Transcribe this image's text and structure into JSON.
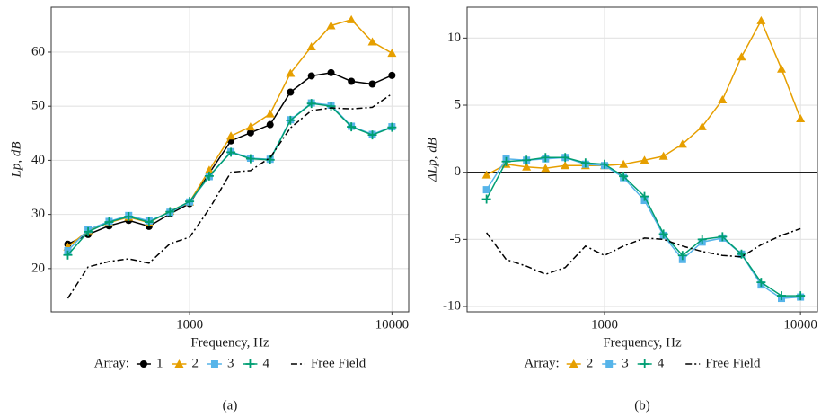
{
  "chart_data": [
    {
      "type": "line",
      "caption": "(a)",
      "x_label": "Frequency, Hz",
      "y_label": "Lp, dB",
      "legend_title": "Array:",
      "legend": "bottom",
      "x": [
        250,
        315,
        400,
        500,
        630,
        800,
        1000,
        1250,
        1600,
        2000,
        2500,
        3150,
        4000,
        5000,
        6300,
        8000,
        10000
      ],
      "xlim": [
        207,
        12100
      ],
      "xticks": [
        1000,
        10000
      ],
      "xscale": "log",
      "ylim": [
        12,
        68.3
      ],
      "yticks": [
        20,
        30,
        40,
        50,
        60
      ],
      "grid": true,
      "series": [
        {
          "name": "1",
          "color": "#000000",
          "marker": "circle",
          "values": [
            24.5,
            26.3,
            27.9,
            28.9,
            27.8,
            30.1,
            32,
            37.6,
            43.6,
            45.1,
            46.6,
            52.6,
            55.6,
            56.2,
            54.6,
            54.1,
            55.7
          ]
        },
        {
          "name": "2",
          "color": "#E69F00",
          "marker": "triangle",
          "values": [
            24,
            27,
            28.5,
            29.5,
            28.5,
            30.6,
            32.3,
            38.2,
            44.5,
            46.2,
            48.6,
            56.1,
            61,
            64.9,
            66,
            61.9,
            59.8
          ]
        },
        {
          "name": "3",
          "color": "#56B4E9",
          "marker": "square",
          "values": [
            23.3,
            27.2,
            28.7,
            29.8,
            28.8,
            30.4,
            32.3,
            37,
            41.6,
            40.4,
            40.2,
            47.5,
            50.6,
            50.2,
            46.3,
            44.8,
            46.2
          ]
        },
        {
          "name": "4",
          "color": "#009E73",
          "marker": "plus",
          "values": [
            22.5,
            26.8,
            28.6,
            29.6,
            28.6,
            30.5,
            32.4,
            37.1,
            41.5,
            40.3,
            40.1,
            47.4,
            50.5,
            50,
            46.2,
            44.7,
            46.1
          ]
        },
        {
          "name": "Free Field",
          "color": "#000000",
          "dash": "dashdot",
          "values": [
            14.5,
            20.3,
            21.3,
            21.8,
            21,
            24.6,
            25.8,
            31,
            37.8,
            38.1,
            40.5,
            46,
            49.2,
            49.7,
            49.5,
            49.8,
            52.3
          ]
        }
      ]
    },
    {
      "type": "line",
      "caption": "(b)",
      "x_label": "Frequency, Hz",
      "y_label": "ΔLp, dB",
      "legend_title": "Array:",
      "legend": "bottom",
      "x": [
        250,
        315,
        400,
        500,
        630,
        800,
        1000,
        1250,
        1600,
        2000,
        2500,
        3150,
        4000,
        5000,
        6300,
        8000,
        10000
      ],
      "xlim": [
        199,
        12200
      ],
      "xticks": [
        1000,
        10000
      ],
      "xscale": "log",
      "ylim": [
        -10.4,
        12.3
      ],
      "yticks": [
        -10,
        -5,
        0,
        5,
        10
      ],
      "grid": true,
      "reference_line": 0,
      "series": [
        {
          "name": "2",
          "color": "#E69F00",
          "marker": "triangle",
          "values": [
            -0.2,
            0.6,
            0.4,
            0.3,
            0.5,
            0.5,
            0.5,
            0.6,
            0.9,
            1.2,
            2.1,
            3.4,
            5.4,
            8.6,
            11.3,
            7.7,
            4
          ]
        },
        {
          "name": "3",
          "color": "#56B4E9",
          "marker": "square",
          "values": [
            -1.3,
            1,
            0.9,
            1,
            1.1,
            0.6,
            0.5,
            -0.4,
            -2.1,
            -4.7,
            -6.5,
            -5.2,
            -4.9,
            -6.1,
            -8.4,
            -9.4,
            -9.3
          ]
        },
        {
          "name": "4",
          "color": "#009E73",
          "marker": "plus",
          "values": [
            -2,
            0.8,
            0.9,
            1.1,
            1.1,
            0.7,
            0.6,
            -0.3,
            -1.8,
            -4.6,
            -6.2,
            -5,
            -4.8,
            -6.1,
            -8.2,
            -9.2,
            -9.2
          ]
        },
        {
          "name": "Free Field",
          "color": "#000000",
          "dash": "dashdot",
          "values": [
            -4.5,
            -6.5,
            -7,
            -7.6,
            -7.1,
            -5.5,
            -6.2,
            -5.5,
            -4.9,
            -5,
            -5.5,
            -5.9,
            -6.2,
            -6.3,
            -5.4,
            -4.7,
            -4.2
          ]
        }
      ]
    }
  ]
}
